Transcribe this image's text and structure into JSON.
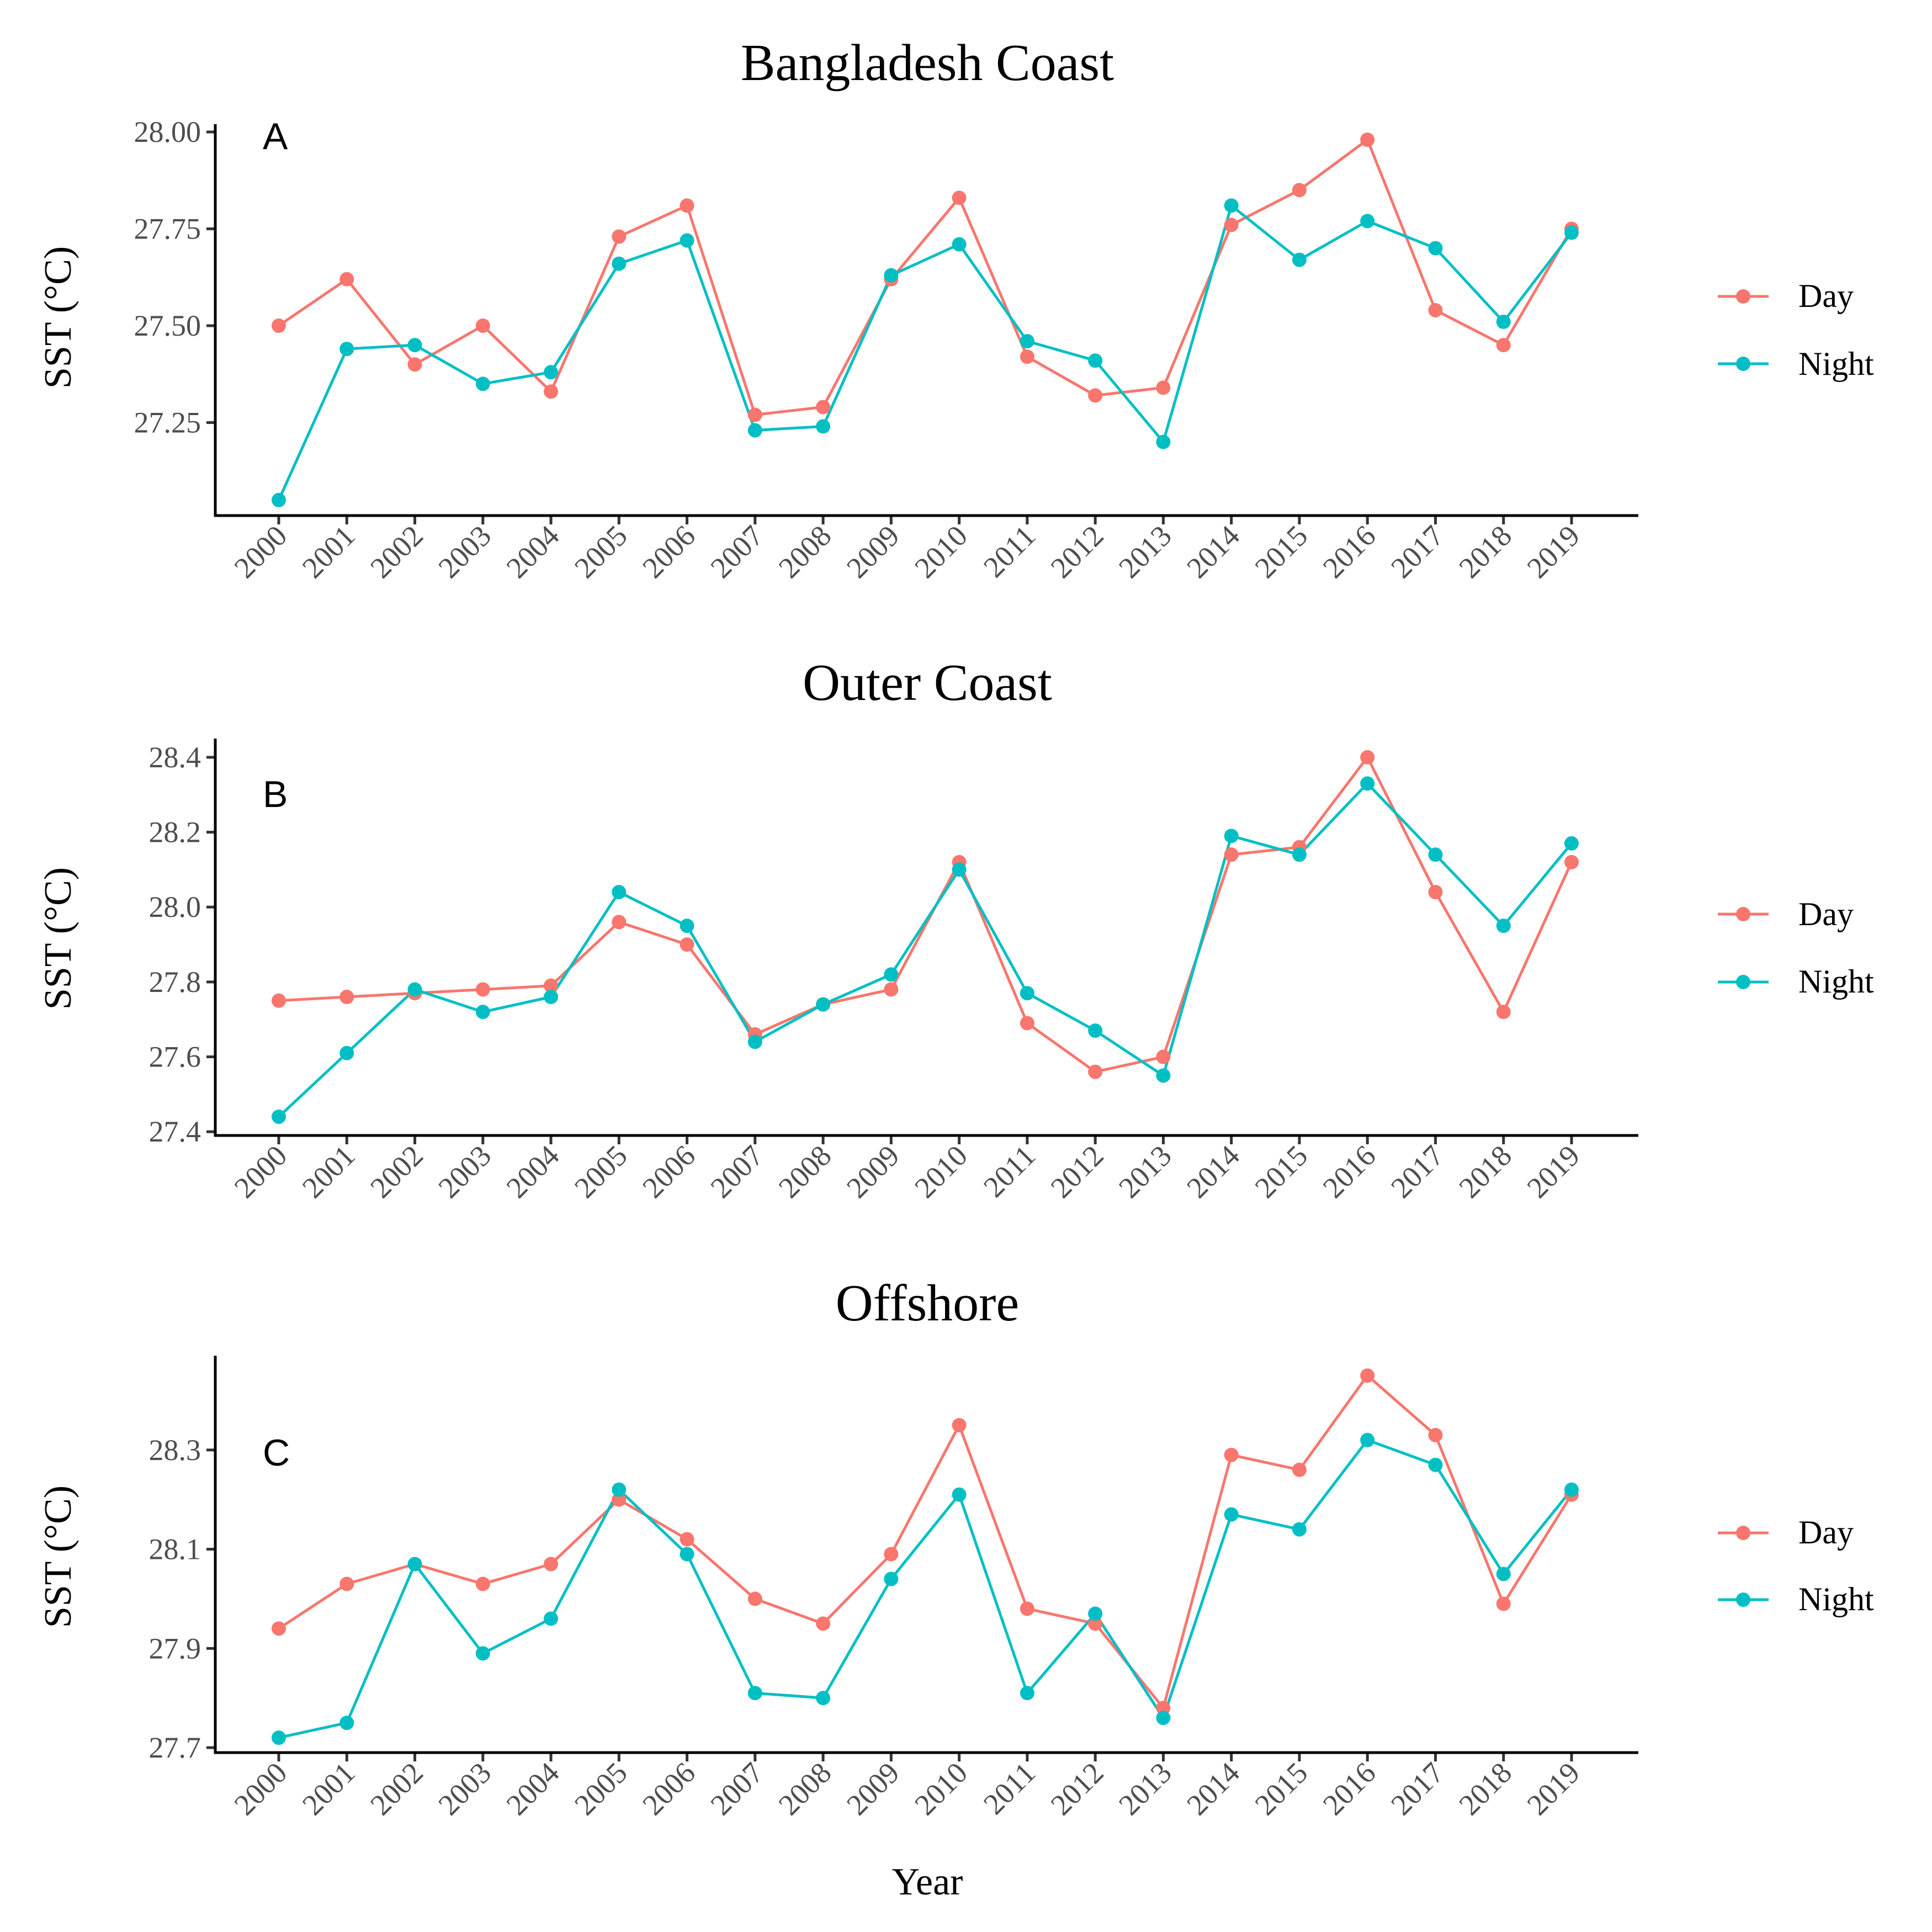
{
  "figure": {
    "xlabel": "Year",
    "colors": {
      "Day": "#F8766D",
      "Night": "#00BFC4"
    }
  },
  "legend": {
    "items": [
      "Day",
      "Night"
    ],
    "position": "right"
  },
  "chart_data": [
    {
      "type": "line",
      "tag": "A",
      "title": "Bangladesh Coast",
      "ylabel": "SST (°C)",
      "xlabel": "",
      "x": [
        "2000",
        "2001",
        "2002",
        "2003",
        "2004",
        "2005",
        "2006",
        "2007",
        "2008",
        "2009",
        "2010",
        "2011",
        "2012",
        "2013",
        "2014",
        "2015",
        "2016",
        "2017",
        "2018",
        "2019"
      ],
      "yticks": [
        27.25,
        27.5,
        27.75,
        28.0
      ],
      "ytick_labels": [
        "27.25",
        "27.50",
        "27.75",
        "28.00"
      ],
      "ylim": [
        27.01,
        28.02
      ],
      "grid": false,
      "series": [
        {
          "name": "Day",
          "color": "#F8766D",
          "values": [
            27.5,
            27.62,
            27.4,
            27.5,
            27.33,
            27.73,
            27.81,
            27.27,
            27.29,
            27.62,
            27.83,
            27.42,
            27.32,
            27.34,
            27.76,
            27.85,
            27.98,
            27.54,
            27.45,
            27.75
          ]
        },
        {
          "name": "Night",
          "color": "#00BFC4",
          "values": [
            27.05,
            27.44,
            27.45,
            27.35,
            27.38,
            27.66,
            27.72,
            27.23,
            27.24,
            27.63,
            27.71,
            27.46,
            27.41,
            27.2,
            27.81,
            27.67,
            27.77,
            27.7,
            27.51,
            27.74
          ]
        }
      ]
    },
    {
      "type": "line",
      "tag": "B",
      "title": "Outer Coast",
      "ylabel": "SST (°C)",
      "xlabel": "",
      "x": [
        "2000",
        "2001",
        "2002",
        "2003",
        "2004",
        "2005",
        "2006",
        "2007",
        "2008",
        "2009",
        "2010",
        "2011",
        "2012",
        "2013",
        "2014",
        "2015",
        "2016",
        "2017",
        "2018",
        "2019"
      ],
      "yticks": [
        27.4,
        27.6,
        27.8,
        28.0,
        28.2,
        28.4
      ],
      "ytick_labels": [
        "27.4",
        "27.6",
        "27.8",
        "28.0",
        "28.2",
        "28.4"
      ],
      "ylim": [
        27.39,
        28.45
      ],
      "grid": false,
      "series": [
        {
          "name": "Day",
          "color": "#F8766D",
          "values": [
            27.75,
            27.76,
            27.77,
            27.78,
            27.79,
            27.96,
            27.9,
            27.66,
            27.74,
            27.78,
            28.12,
            27.69,
            27.56,
            27.6,
            28.14,
            28.16,
            28.4,
            28.04,
            27.72,
            28.12
          ]
        },
        {
          "name": "Night",
          "color": "#00BFC4",
          "values": [
            27.44,
            27.61,
            27.78,
            27.72,
            27.76,
            28.04,
            27.95,
            27.64,
            27.74,
            27.82,
            28.1,
            27.77,
            27.67,
            27.55,
            28.19,
            28.14,
            28.33,
            28.14,
            27.95,
            28.17
          ]
        }
      ]
    },
    {
      "type": "line",
      "tag": "C",
      "title": "Offshore",
      "ylabel": "SST (°C)",
      "xlabel": "Year",
      "x": [
        "2000",
        "2001",
        "2002",
        "2003",
        "2004",
        "2005",
        "2006",
        "2007",
        "2008",
        "2009",
        "2010",
        "2011",
        "2012",
        "2013",
        "2014",
        "2015",
        "2016",
        "2017",
        "2018",
        "2019"
      ],
      "yticks": [
        27.7,
        27.9,
        28.1,
        28.3
      ],
      "ytick_labels": [
        "27.7",
        "27.9",
        "28.1",
        "28.3"
      ],
      "ylim": [
        27.69,
        28.49
      ],
      "grid": false,
      "series": [
        {
          "name": "Day",
          "color": "#F8766D",
          "values": [
            27.94,
            28.03,
            28.07,
            28.03,
            28.07,
            28.2,
            28.12,
            28.0,
            27.95,
            28.09,
            28.35,
            27.98,
            27.95,
            27.78,
            28.29,
            28.26,
            28.45,
            28.33,
            27.99,
            28.21
          ]
        },
        {
          "name": "Night",
          "color": "#00BFC4",
          "values": [
            27.72,
            27.75,
            28.07,
            27.89,
            27.96,
            28.22,
            28.09,
            27.81,
            27.8,
            28.04,
            28.21,
            27.81,
            27.97,
            27.76,
            28.17,
            28.14,
            28.32,
            28.27,
            28.05,
            28.22
          ]
        }
      ]
    }
  ]
}
